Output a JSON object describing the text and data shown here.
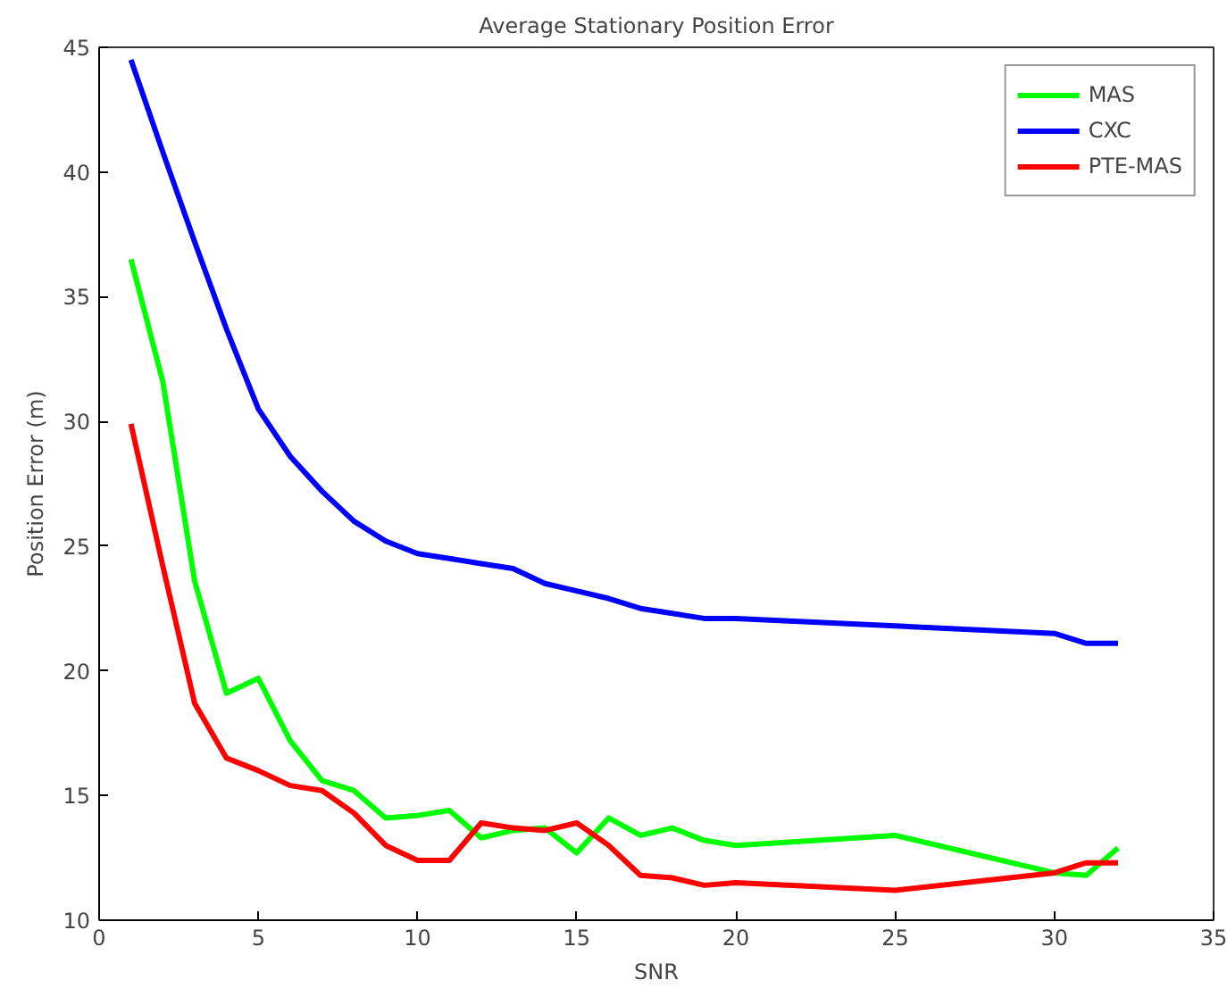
{
  "chart_data": {
    "type": "line",
    "title": "Average Stationary Position Error",
    "xlabel": "SNR",
    "ylabel": "Position Error (m)",
    "x": [
      1,
      2,
      3,
      4,
      5,
      6,
      7,
      8,
      9,
      10,
      11,
      12,
      13,
      14,
      15,
      16,
      17,
      18,
      19,
      20,
      25,
      30,
      31,
      32
    ],
    "series": [
      {
        "name": "MAS",
        "color": "#00ff00",
        "values": [
          36.5,
          31.6,
          23.6,
          19.1,
          19.7,
          17.2,
          15.6,
          15.2,
          14.1,
          14.2,
          14.4,
          13.3,
          13.6,
          13.7,
          12.7,
          14.1,
          13.4,
          13.7,
          13.2,
          13.0,
          13.4,
          11.9,
          11.8,
          12.9
        ]
      },
      {
        "name": "CXC",
        "color": "#0000ff",
        "values": [
          44.5,
          40.8,
          37.2,
          33.7,
          30.5,
          28.6,
          27.2,
          26.0,
          25.2,
          24.7,
          24.5,
          24.3,
          24.1,
          23.5,
          23.2,
          22.9,
          22.5,
          22.3,
          22.1,
          22.1,
          21.8,
          21.5,
          21.1,
          21.1
        ]
      },
      {
        "name": "PTE-MAS",
        "color": "#ff0000",
        "values": [
          29.9,
          24.2,
          18.7,
          16.5,
          16.0,
          15.4,
          15.2,
          14.3,
          13.0,
          12.4,
          12.4,
          13.9,
          13.7,
          13.6,
          13.9,
          13.0,
          11.8,
          11.7,
          11.4,
          11.5,
          11.2,
          11.9,
          12.3,
          12.3
        ]
      }
    ],
    "xlim": [
      0,
      35
    ],
    "xticks": [
      0,
      5,
      10,
      15,
      20,
      25,
      30,
      35
    ],
    "ylim": [
      10,
      45
    ],
    "yticks": [
      10,
      15,
      20,
      25,
      30,
      35,
      40,
      45
    ],
    "grid": false,
    "legend": "top right",
    "marker": "none",
    "line_style": "solid"
  }
}
